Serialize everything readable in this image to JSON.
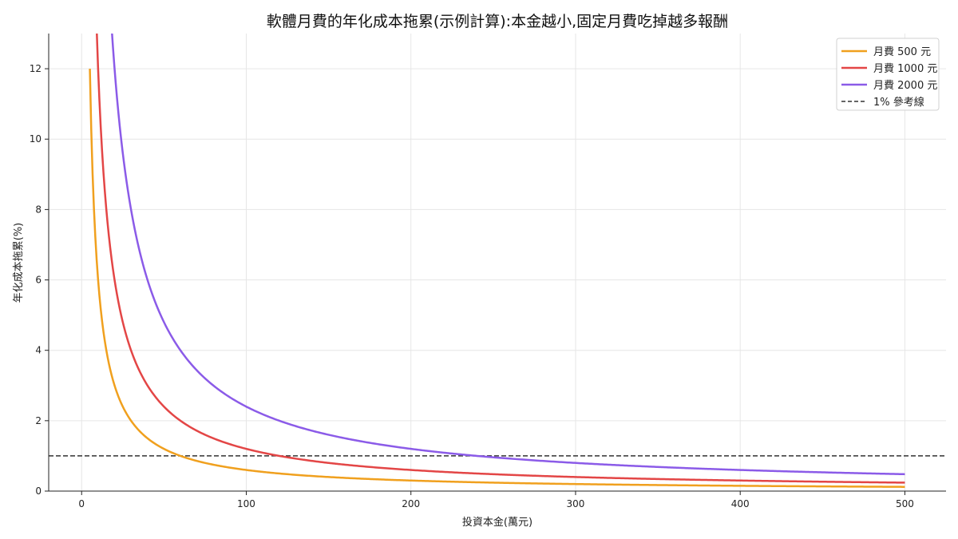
{
  "chart_data": {
    "type": "line",
    "title": "軟體月費的年化成本拖累(示例計算):本金越小,固定月費吃掉越多報酬",
    "xlabel": "投資本金(萬元)",
    "ylabel": "年化成本拖累(%)",
    "xlim": [
      -20,
      525
    ],
    "ylim": [
      0,
      13
    ],
    "x_ticks": [
      0,
      100,
      200,
      300,
      400,
      500
    ],
    "y_ticks": [
      0,
      2,
      4,
      6,
      8,
      10,
      12
    ],
    "grid": true,
    "legend_position": "top-right",
    "series": [
      {
        "name": "月費 500 元",
        "monthly_fee": 500,
        "color": "#f0a01e",
        "x_start": 5,
        "x_end": 500
      },
      {
        "name": "月費 1000 元",
        "monthly_fee": 1000,
        "color": "#e34646",
        "x_start": 5,
        "x_end": 500
      },
      {
        "name": "月費 2000 元",
        "monthly_fee": 2000,
        "color": "#8b5be8",
        "x_start": 5,
        "x_end": 500
      }
    ],
    "reference_line": {
      "name": "1% 參考線",
      "y": 1,
      "color": "#333333",
      "style": "dashed"
    }
  }
}
